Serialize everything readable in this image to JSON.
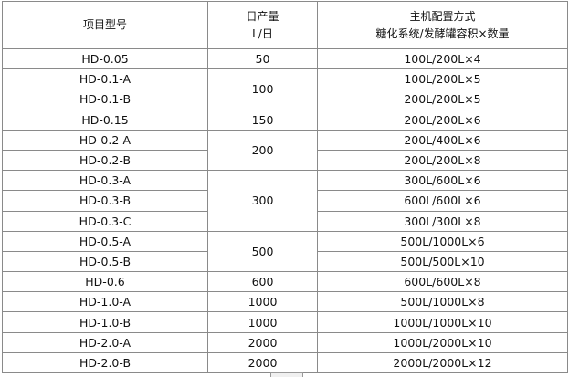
{
  "header": {
    "model": "项目型号",
    "daily_output_line1": "日产量",
    "daily_output_line2": "L/日",
    "config_line1": "主机配置方式",
    "config_line2": "糖化系统/发酵罐容积×数量"
  },
  "rows": [
    {
      "model": "HD-0.05",
      "output": "50",
      "output_span": 1,
      "config": "100L/200L×4"
    },
    {
      "model": "HD-0.1-A",
      "output": "100",
      "output_span": 2,
      "config": "100L/200L×5"
    },
    {
      "model": "HD-0.1-B",
      "output": null,
      "config": "200L/200L×5"
    },
    {
      "model": "HD-0.15",
      "output": "150",
      "output_span": 1,
      "config": "200L/200L×6"
    },
    {
      "model": "HD-0.2-A",
      "output": "200",
      "output_span": 2,
      "config": "200L/400L×6"
    },
    {
      "model": "HD-0.2-B",
      "output": null,
      "config": "200L/200L×8"
    },
    {
      "model": "HD-0.3-A",
      "output": "300",
      "output_span": 3,
      "config": "300L/600L×6"
    },
    {
      "model": "HD-0.3-B",
      "output": null,
      "config": "600L/600L×6"
    },
    {
      "model": "HD-0.3-C",
      "output": null,
      "config": "300L/300L×8"
    },
    {
      "model": "HD-0.5-A",
      "output": "500",
      "output_span": 2,
      "config": "500L/1000L×6"
    },
    {
      "model": "HD-0.5-B",
      "output": null,
      "config": "500L/500L×10"
    },
    {
      "model": "HD-0.6",
      "output": "600",
      "output_span": 1,
      "config": "600L/600L×8"
    },
    {
      "model": "HD-1.0-A",
      "output": "1000",
      "output_span": 1,
      "config": "500L/1000L×8"
    },
    {
      "model": "HD-1.0-B",
      "output": "1000",
      "output_span": 1,
      "config": "1000L/1000L×10"
    },
    {
      "model": "HD-2.0-A",
      "output": "2000",
      "output_span": 1,
      "config": "1000L/2000L×10"
    },
    {
      "model": "HD-2.0-B",
      "output": "2000",
      "output_span": 1,
      "config": "2000L/2000L×12"
    }
  ]
}
